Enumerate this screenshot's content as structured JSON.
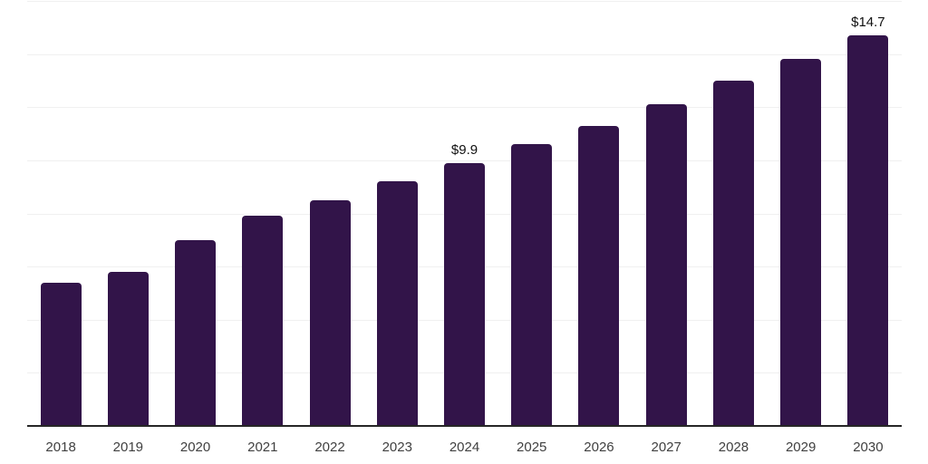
{
  "chart": {
    "background_color": "#ffffff",
    "bar_color": "#321449",
    "grid_color": "#f0f0f0",
    "axis_line_color": "#262626",
    "tick_label_color": "#404040",
    "data_label_color": "#111111"
  },
  "chart_data": {
    "type": "bar",
    "categories": [
      "2018",
      "2019",
      "2020",
      "2021",
      "2022",
      "2023",
      "2024",
      "2025",
      "2026",
      "2027",
      "2028",
      "2029",
      "2030"
    ],
    "values": [
      5.4,
      5.8,
      7.0,
      7.9,
      8.5,
      9.2,
      9.9,
      10.6,
      11.3,
      12.1,
      13.0,
      13.8,
      14.7
    ],
    "data_labels": {
      "2024": "$9.9",
      "2030": "$14.7"
    },
    "ylim": [
      0,
      16
    ],
    "grid_step": 2,
    "grid": "horizontal",
    "legend": "none",
    "x_tick_labels": [
      "2018",
      "2019",
      "2020",
      "2021",
      "2022",
      "2023",
      "2024",
      "2025",
      "2026",
      "2027",
      "2028",
      "2029",
      "2030"
    ]
  }
}
